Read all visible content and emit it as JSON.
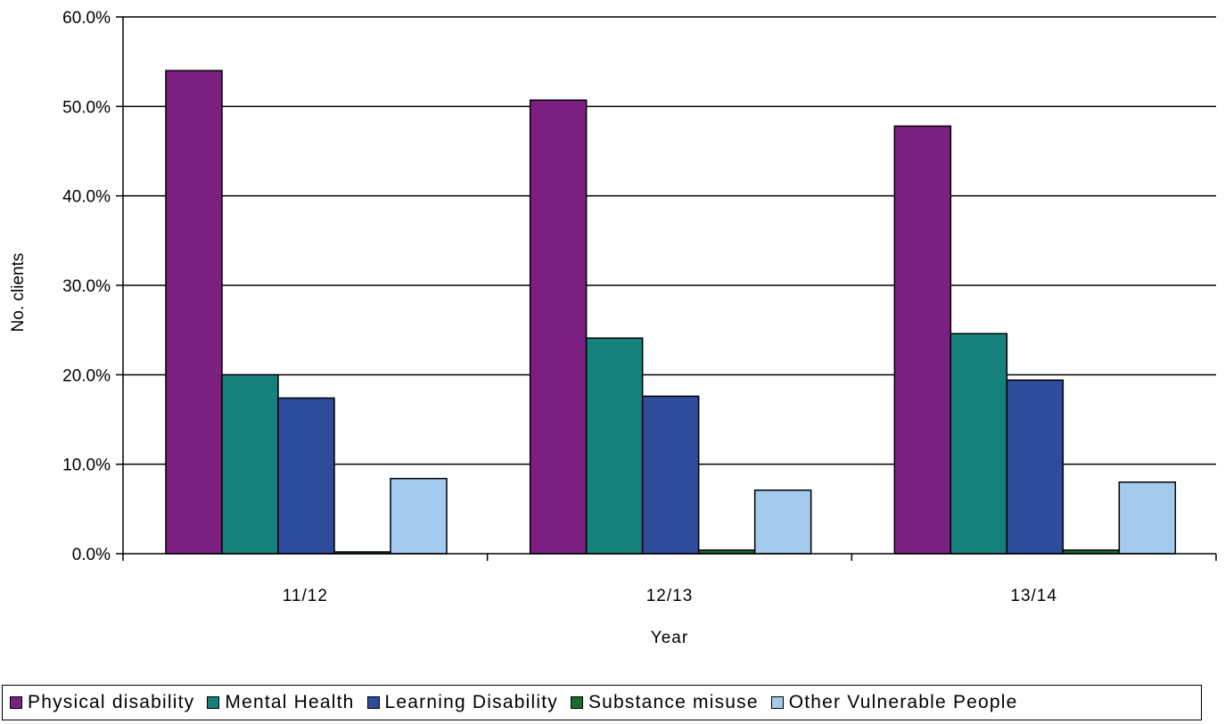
{
  "chart_data": {
    "type": "bar",
    "title": "",
    "xlabel": "Year",
    "ylabel": "No. clients",
    "ylim": [
      0,
      60
    ],
    "ytick_values": [
      0,
      10,
      20,
      30,
      40,
      50,
      60
    ],
    "ytick_labels": [
      "0.0%",
      "10.0%",
      "20.0%",
      "30.0%",
      "40.0%",
      "50.0%",
      "60.0%"
    ],
    "grid": true,
    "legend_position": "bottom",
    "categories": [
      "11/12",
      "12/13",
      "13/14"
    ],
    "series": [
      {
        "name": "Physical disability",
        "color": "#7B2080",
        "values": [
          54.0,
          50.7,
          47.8
        ]
      },
      {
        "name": "Mental Health",
        "color": "#16807C",
        "values": [
          20.0,
          24.1,
          24.6
        ]
      },
      {
        "name": "Learning Disability",
        "color": "#2E4B9C",
        "values": [
          17.4,
          17.6,
          19.4
        ]
      },
      {
        "name": "Substance misuse",
        "color": "#1A6B2E",
        "values": [
          0.2,
          0.4,
          0.4
        ]
      },
      {
        "name": "Other Vulnerable People",
        "color": "#A4CBEE",
        "values": [
          8.4,
          7.1,
          8.0
        ]
      }
    ]
  }
}
